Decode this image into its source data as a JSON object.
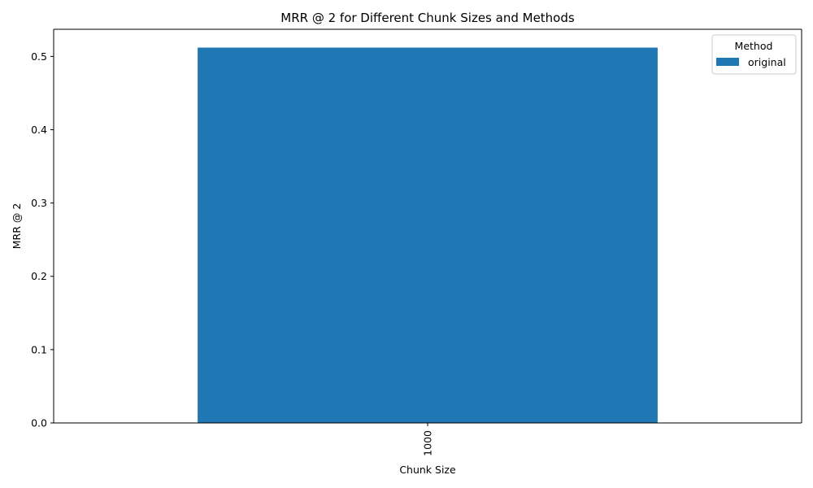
{
  "chart_data": {
    "type": "bar",
    "title": "MRR @ 2 for Different Chunk Sizes and Methods",
    "xlabel": "Chunk Size",
    "ylabel": "MRR @ 2",
    "categories": [
      "1000"
    ],
    "series": [
      {
        "name": "original",
        "values": [
          0.512
        ],
        "color": "#1f77b4"
      }
    ],
    "ylim": [
      0,
      0.537
    ],
    "yticks": [
      0.0,
      0.1,
      0.2,
      0.3,
      0.4,
      0.5
    ],
    "ytick_labels": [
      "0.0",
      "0.1",
      "0.2",
      "0.3",
      "0.4",
      "0.5"
    ],
    "grid": false,
    "legend": {
      "title": "Method",
      "placement": "top-right"
    }
  }
}
